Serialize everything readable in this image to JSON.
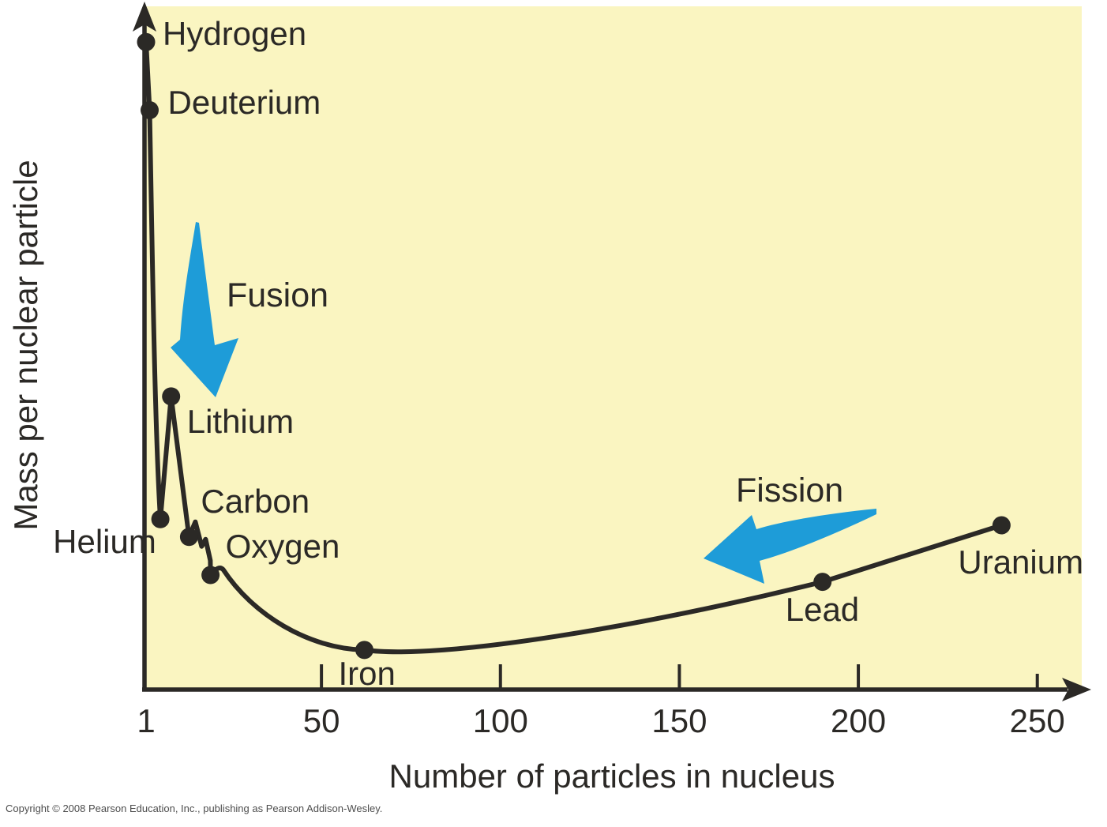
{
  "colors": {
    "plot_bg": "#faf5c1",
    "line": "#2b2926",
    "accent_blue": "#1e9cd8",
    "canvas_bg": "#ffffff",
    "copyright_text": "#4d4d4d"
  },
  "axes": {
    "x_label": "Number of particles in nucleus",
    "y_label": "Mass per nuclear particle",
    "x_ticks": [
      {
        "label": "1",
        "value": 1,
        "has_tick_mark": false,
        "tick_height": 0
      },
      {
        "label": "50",
        "value": 50,
        "has_tick_mark": true,
        "tick_height": 30
      },
      {
        "label": "100",
        "value": 100,
        "has_tick_mark": true,
        "tick_height": 30
      },
      {
        "label": "150",
        "value": 150,
        "has_tick_mark": true,
        "tick_height": 30
      },
      {
        "label": "200",
        "value": 200,
        "has_tick_mark": true,
        "tick_height": 30
      },
      {
        "label": "250",
        "value": 250,
        "has_tick_mark": true,
        "tick_height": 18
      }
    ]
  },
  "annotations": {
    "fusion_label": "Fusion",
    "fission_label": "Fission"
  },
  "copyright": "Copyright © 2008 Pearson Education, Inc., publishing as Pearson Addison-Wesley.",
  "chart_data": {
    "type": "line",
    "title": "",
    "xlabel": "Number of particles in nucleus",
    "ylabel": "Mass per nuclear particle",
    "x_range": [
      1,
      265
    ],
    "x_tick_values": [
      1,
      50,
      100,
      150,
      200,
      250
    ],
    "y_axis_ticks": "none (qualitative axis with up arrow)",
    "grid": false,
    "points": [
      {
        "label": "Hydrogen",
        "particles": 1,
        "mass_per_particle_rel": 0.95
      },
      {
        "label": "Deuterium",
        "particles": 2,
        "mass_per_particle_rel": 0.85
      },
      {
        "label": "Helium",
        "particles": 5,
        "mass_per_particle_rel": 0.25
      },
      {
        "label": "Lithium",
        "particles": 8,
        "mass_per_particle_rel": 0.43
      },
      {
        "label": "Carbon",
        "particles": 13,
        "mass_per_particle_rel": 0.224
      },
      {
        "label": "Oxygen",
        "particles": 19,
        "mass_per_particle_rel": 0.168
      },
      {
        "label": "Iron",
        "particles": 62,
        "mass_per_particle_rel": 0.058
      },
      {
        "label": "Lead",
        "particles": 190,
        "mass_per_particle_rel": 0.158
      },
      {
        "label": "Uranium",
        "particles": 240,
        "mass_per_particle_rel": 0.241
      }
    ],
    "annotations": [
      {
        "label": "Fusion",
        "arrow_direction": "down-right toward Lithium"
      },
      {
        "label": "Fission",
        "arrow_direction": "left from near Uranium toward Lead/Iron"
      }
    ]
  }
}
